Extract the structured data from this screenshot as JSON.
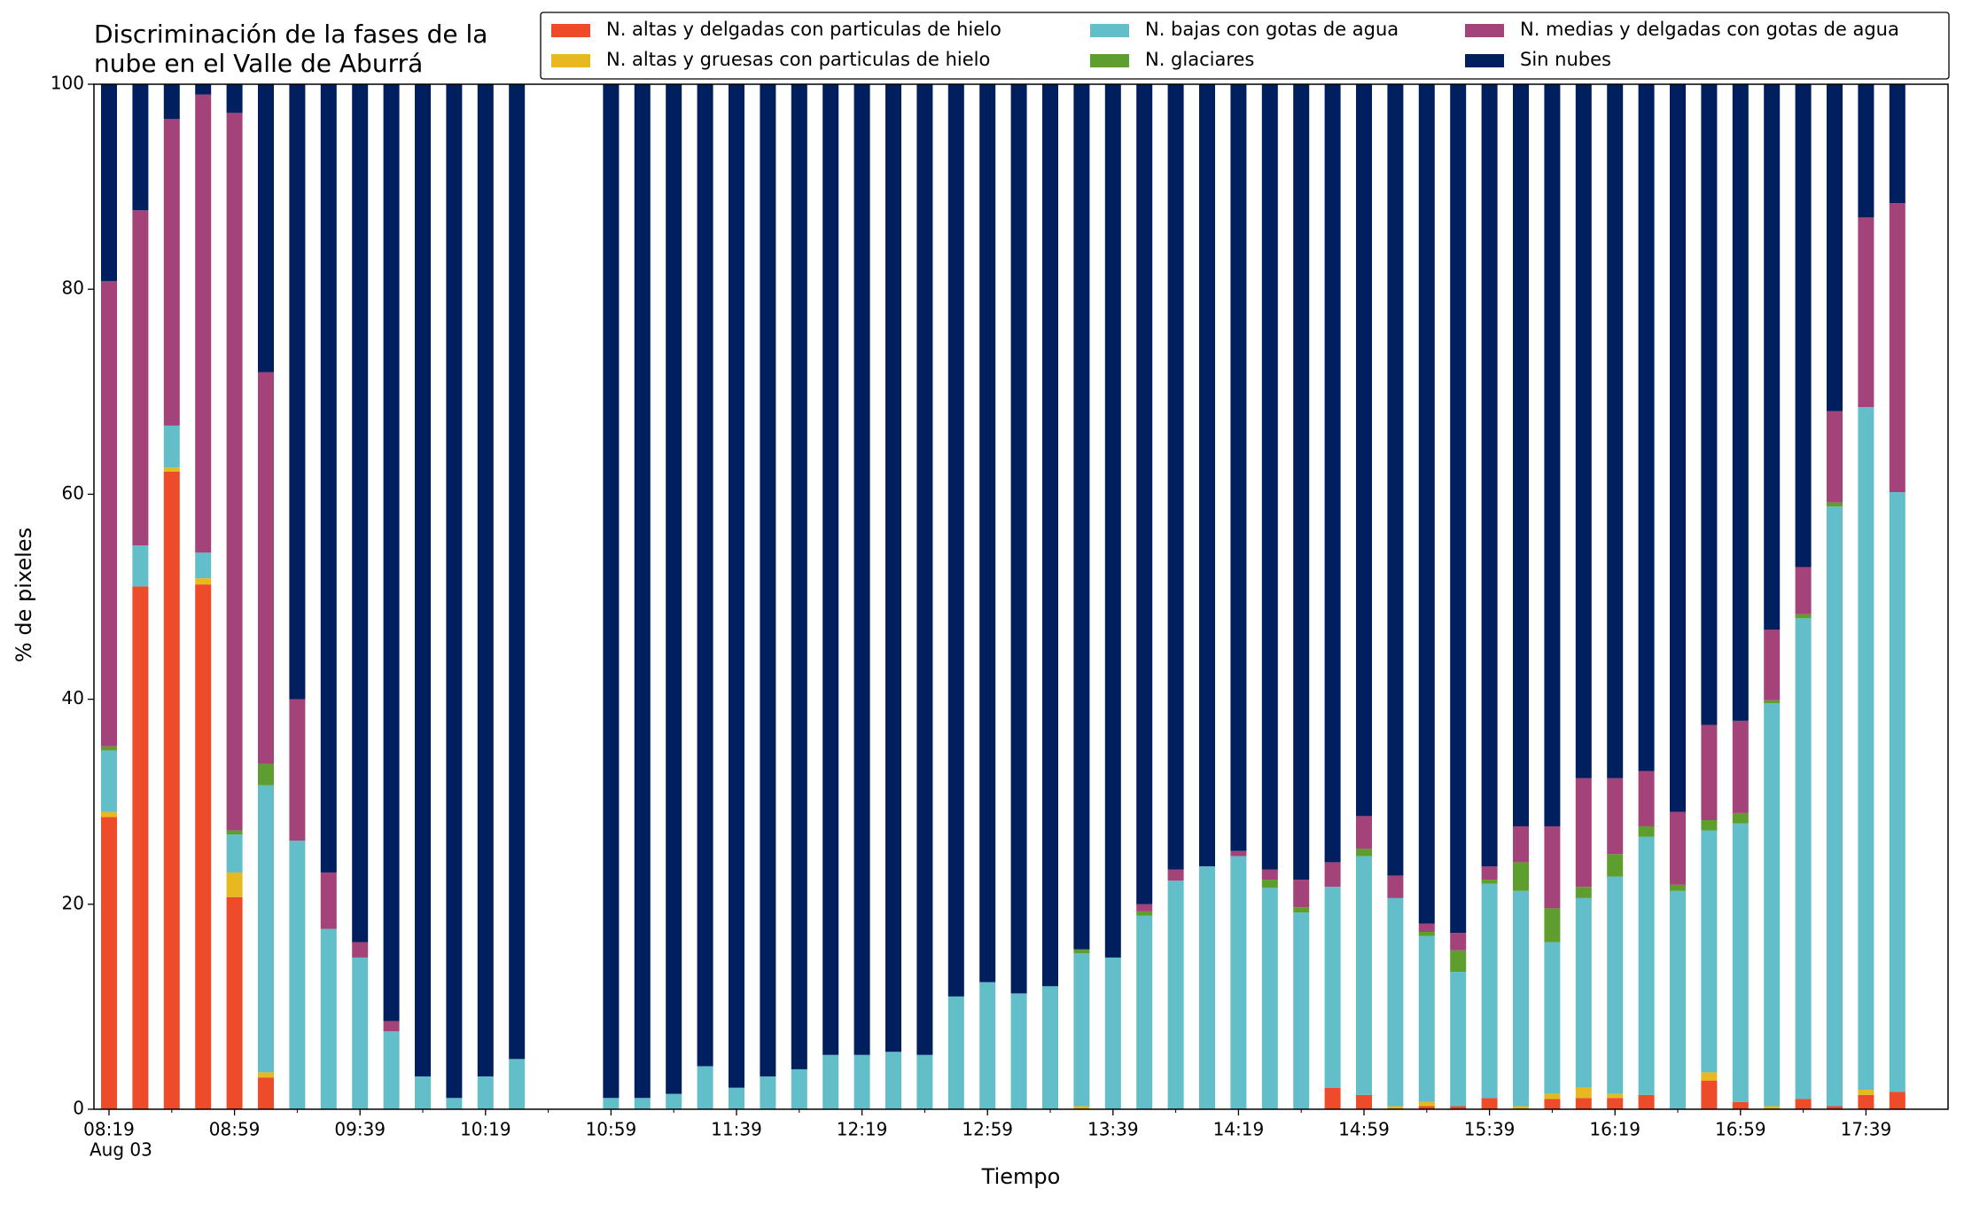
{
  "chart_data": {
    "type": "stacked_bar",
    "title": [
      "Discriminación de la fases de la",
      "nube en el Valle de Aburrá"
    ],
    "xlabel": "Tiempo",
    "ylabel": "% de pixeles",
    "date_label": "Aug 03",
    "categories": [
      "08:19",
      null,
      null,
      null,
      "08:59",
      null,
      null,
      null,
      "09:39",
      null,
      null,
      null,
      "10:19",
      null,
      null,
      null,
      "10:59",
      null,
      null,
      null,
      "11:39",
      null,
      null,
      null,
      "12:19",
      null,
      null,
      null,
      "12:59",
      null,
      null,
      null,
      "13:39",
      null,
      null,
      null,
      "14:19",
      null,
      null,
      null,
      "14:59",
      null,
      null,
      null,
      "15:39",
      null,
      null,
      null,
      "16:19",
      null,
      null,
      null,
      "16:59",
      null,
      null,
      null,
      "17:39",
      null
    ],
    "ylim": [
      0,
      100
    ],
    "yticks": [
      0,
      20,
      40,
      60,
      80,
      100
    ],
    "legend": "upper right",
    "series": [
      {
        "name": "N. altas y delgadas con particulas de hielo",
        "color": "#ee4b2b",
        "values": [
          28.5,
          51,
          62.2,
          51.2,
          20.7,
          3.1,
          0,
          0,
          0,
          0,
          0,
          0,
          0,
          0,
          null,
          null,
          0,
          0,
          0,
          0,
          0,
          0,
          0,
          0,
          0,
          0,
          0,
          0,
          0,
          0,
          0,
          0,
          0,
          0,
          0,
          0,
          0,
          0,
          0,
          2.1,
          1.4,
          0,
          0.3,
          0.3,
          1.1,
          0,
          1.0,
          1.1,
          1.1,
          1.4,
          0,
          2.8,
          0.7,
          0,
          1.0,
          0.3,
          1.4,
          1.7
        ]
      },
      {
        "name": "N. altas y gruesas con particulas de hielo",
        "color": "#e8b820",
        "values": [
          0.5,
          0,
          0.4,
          0.6,
          2.4,
          0.5,
          0,
          0,
          0,
          0,
          0,
          0,
          0,
          0,
          null,
          null,
          0,
          0,
          0,
          0,
          0,
          0,
          0,
          0,
          0,
          0,
          0,
          0,
          0,
          0,
          0,
          0.3,
          0,
          0,
          0,
          0,
          0,
          0,
          0,
          0,
          0,
          0.3,
          0.4,
          0,
          0,
          0.3,
          0.5,
          1.0,
          0.4,
          0,
          0,
          0.8,
          0,
          0.3,
          0,
          0,
          0.5,
          0
        ]
      },
      {
        "name": "N. bajas con gotas de agua",
        "color": "#62bfca",
        "values": [
          6,
          4,
          4.1,
          2.5,
          3.7,
          28,
          26.2,
          17.6,
          14.8,
          7.6,
          3.2,
          1.1,
          3.2,
          4.9,
          null,
          null,
          1.1,
          1.1,
          1.5,
          4.2,
          2.1,
          3.2,
          3.9,
          5.3,
          5.3,
          5.6,
          5.3,
          11.0,
          12.4,
          11.3,
          12.0,
          14.9,
          14.8,
          18.9,
          22.3,
          23.7,
          24.7,
          21.6,
          19.2,
          19.6,
          23.3,
          20.3,
          16.2,
          13.1,
          20.9,
          21.0,
          14.8,
          18.5,
          21.2,
          25.2,
          21.3,
          23.6,
          27.2,
          39.3,
          46.9,
          58.5,
          66.6,
          58.5
        ]
      },
      {
        "name": "N. glaciares",
        "color": "#5e9e2e",
        "values": [
          0.4,
          0,
          0,
          0,
          0.4,
          2.1,
          0,
          0,
          0,
          0,
          0,
          0,
          0,
          0,
          null,
          null,
          0,
          0,
          0,
          0,
          0,
          0,
          0,
          0,
          0,
          0,
          0,
          0,
          0,
          0,
          0,
          0.4,
          0,
          0.4,
          0,
          0,
          0,
          0.8,
          0.5,
          0,
          0.7,
          0,
          0.4,
          2.1,
          0.4,
          2.8,
          3.3,
          1.1,
          2.2,
          1.0,
          0.6,
          1.0,
          1.0,
          0.3,
          0.4,
          0.4,
          0,
          0
        ]
      },
      {
        "name": "N. medias y delgadas con gotas de agua",
        "color": "#a3437a",
        "values": [
          45.4,
          32.7,
          29.9,
          44.7,
          70,
          38.2,
          13.8,
          5.5,
          1.5,
          1.0,
          0,
          0,
          0,
          0,
          null,
          null,
          0,
          0,
          0,
          0,
          0,
          0,
          0,
          0,
          0,
          0,
          0,
          0,
          0,
          0,
          0,
          0,
          0,
          0.7,
          1.1,
          0,
          0.5,
          1.0,
          2.7,
          2.4,
          3.2,
          2.2,
          0.8,
          1.7,
          1.3,
          3.5,
          8.0,
          10.6,
          7.4,
          5.4,
          7.1,
          9.3,
          9.0,
          6.9,
          4.6,
          8.9,
          18.5,
          28.2
        ]
      },
      {
        "name": "Sin nubes",
        "color": "#001f5e",
        "values": [
          19.2,
          12.3,
          3.4,
          1,
          2.8,
          28.1,
          60,
          76.9,
          83.7,
          91.4,
          96.8,
          98.9,
          96.8,
          95.1,
          null,
          null,
          98.9,
          98.9,
          98.5,
          95.8,
          97.9,
          96.8,
          96.1,
          94.7,
          94.7,
          94.4,
          94.7,
          89.0,
          87.6,
          88.7,
          88.0,
          84.4,
          85.2,
          80,
          76.6,
          76.3,
          74.8,
          76.6,
          77.6,
          75.9,
          71.4,
          77.2,
          81.9,
          82.8,
          76.3,
          72.4,
          72.4,
          67.7,
          67.7,
          67,
          71,
          62.5,
          62.1,
          53.2,
          47.1,
          31.9,
          13,
          11.6
        ]
      }
    ]
  }
}
